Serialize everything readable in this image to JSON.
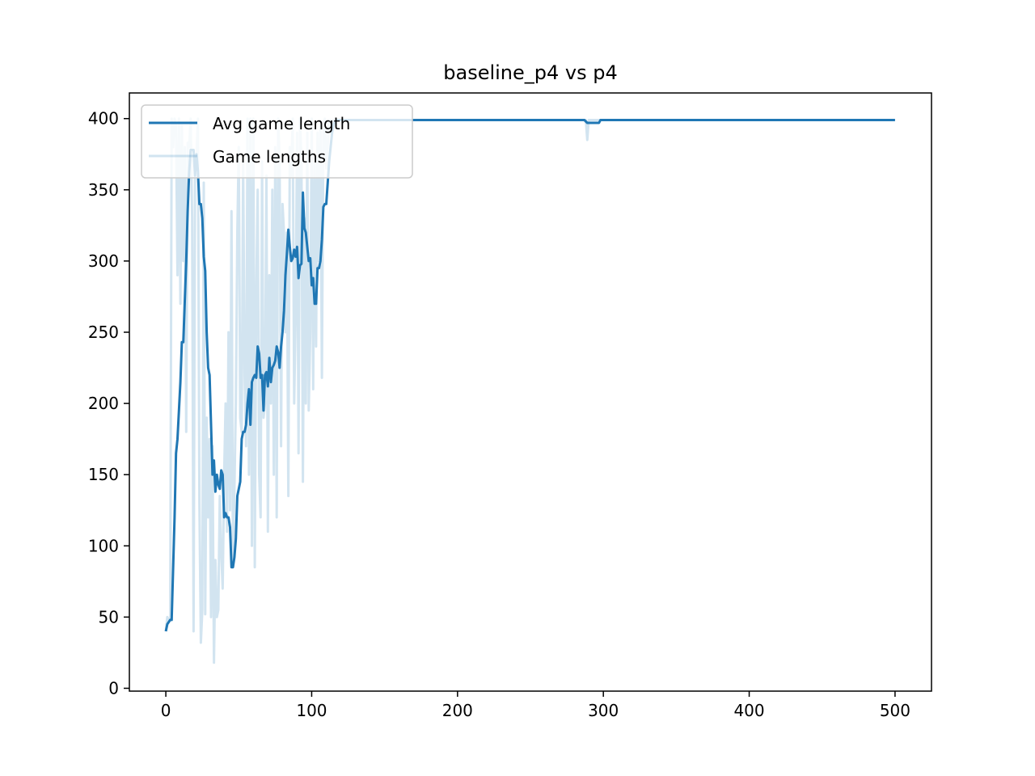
{
  "chart_data": {
    "type": "line",
    "title": "baseline_p4 vs p4",
    "xlabel": "",
    "ylabel": "",
    "xlim": [
      -25,
      525
    ],
    "ylim": [
      -2,
      418
    ],
    "x_ticks": [
      0,
      100,
      200,
      300,
      400,
      500
    ],
    "y_ticks": [
      0,
      50,
      100,
      150,
      200,
      250,
      300,
      350,
      400
    ],
    "grid": false,
    "legend_position": "top-left",
    "colors": {
      "avg": "#1f77b4",
      "raw": "#1f77b4"
    },
    "series": [
      {
        "name": "Avg game length",
        "style": "solid",
        "points": [
          [
            0,
            40
          ],
          [
            1,
            45
          ],
          [
            3,
            48
          ],
          [
            4,
            48
          ],
          [
            6,
            120
          ],
          [
            7,
            165
          ],
          [
            8,
            175
          ],
          [
            10,
            215
          ],
          [
            11,
            243
          ],
          [
            12,
            243
          ],
          [
            14,
            300
          ],
          [
            15,
            335
          ],
          [
            16,
            362
          ],
          [
            17,
            378
          ],
          [
            19,
            378
          ],
          [
            20,
            360
          ],
          [
            21,
            375
          ],
          [
            22,
            363
          ],
          [
            23,
            340
          ],
          [
            24,
            340
          ],
          [
            25,
            330
          ],
          [
            26,
            303
          ],
          [
            27,
            293
          ],
          [
            28,
            250
          ],
          [
            29,
            225
          ],
          [
            30,
            220
          ],
          [
            31,
            185
          ],
          [
            32,
            150
          ],
          [
            33,
            160
          ],
          [
            34,
            138
          ],
          [
            35,
            150
          ],
          [
            36,
            143
          ],
          [
            37,
            140
          ],
          [
            38,
            153
          ],
          [
            39,
            150
          ],
          [
            40,
            120
          ],
          [
            41,
            123
          ],
          [
            42,
            120
          ],
          [
            43,
            120
          ],
          [
            44,
            113
          ],
          [
            45,
            85
          ],
          [
            46,
            85
          ],
          [
            47,
            92
          ],
          [
            48,
            105
          ],
          [
            49,
            135
          ],
          [
            50,
            140
          ],
          [
            51,
            145
          ],
          [
            52,
            175
          ],
          [
            53,
            180
          ],
          [
            54,
            180
          ],
          [
            55,
            185
          ],
          [
            56,
            200
          ],
          [
            57,
            210
          ],
          [
            58,
            185
          ],
          [
            59,
            215
          ],
          [
            60,
            218
          ],
          [
            61,
            220
          ],
          [
            62,
            218
          ],
          [
            63,
            240
          ],
          [
            64,
            235
          ],
          [
            65,
            218
          ],
          [
            66,
            220
          ],
          [
            67,
            195
          ],
          [
            68,
            220
          ],
          [
            69,
            222
          ],
          [
            70,
            212
          ],
          [
            71,
            232
          ],
          [
            72,
            215
          ],
          [
            73,
            225
          ],
          [
            74,
            227
          ],
          [
            75,
            230
          ],
          [
            76,
            240
          ],
          [
            77,
            236
          ],
          [
            78,
            225
          ],
          [
            79,
            240
          ],
          [
            80,
            250
          ],
          [
            81,
            265
          ],
          [
            82,
            290
          ],
          [
            83,
            305
          ],
          [
            84,
            322
          ],
          [
            85,
            310
          ],
          [
            86,
            300
          ],
          [
            87,
            302
          ],
          [
            88,
            308
          ],
          [
            89,
            303
          ],
          [
            90,
            310
          ],
          [
            91,
            288
          ],
          [
            92,
            297
          ],
          [
            93,
            298
          ],
          [
            94,
            348
          ],
          [
            95,
            323
          ],
          [
            96,
            320
          ],
          [
            97,
            310
          ],
          [
            98,
            300
          ],
          [
            99,
            302
          ],
          [
            100,
            283
          ],
          [
            101,
            288
          ],
          [
            102,
            270
          ],
          [
            103,
            270
          ],
          [
            104,
            295
          ],
          [
            105,
            295
          ],
          [
            106,
            300
          ],
          [
            107,
            315
          ],
          [
            108,
            338
          ],
          [
            109,
            340
          ],
          [
            110,
            340
          ],
          [
            111,
            355
          ],
          [
            112,
            370
          ],
          [
            113,
            380
          ],
          [
            114,
            390
          ],
          [
            115,
            396
          ],
          [
            116,
            398
          ],
          [
            118,
            399
          ],
          [
            120,
            399
          ],
          [
            150,
            399
          ],
          [
            200,
            399
          ],
          [
            250,
            399
          ],
          [
            287,
            399
          ],
          [
            289,
            397
          ],
          [
            297,
            397
          ],
          [
            298,
            399
          ],
          [
            350,
            399
          ],
          [
            400,
            399
          ],
          [
            450,
            399
          ],
          [
            500,
            399
          ]
        ]
      },
      {
        "name": "Game lengths",
        "style": "light",
        "points": [
          [
            0,
            40
          ],
          [
            1,
            50
          ],
          [
            2,
            47
          ],
          [
            3,
            50
          ],
          [
            4,
            400
          ],
          [
            5,
            380
          ],
          [
            6,
            400
          ],
          [
            7,
            395
          ],
          [
            8,
            290
          ],
          [
            9,
            400
          ],
          [
            10,
            270
          ],
          [
            11,
            395
          ],
          [
            12,
            300
          ],
          [
            13,
            380
          ],
          [
            14,
            180
          ],
          [
            15,
            383
          ],
          [
            16,
            380
          ],
          [
            17,
            400
          ],
          [
            18,
            330
          ],
          [
            19,
            40
          ],
          [
            20,
            365
          ],
          [
            21,
            375
          ],
          [
            22,
            400
          ],
          [
            23,
            130
          ],
          [
            24,
            32
          ],
          [
            25,
            55
          ],
          [
            26,
            355
          ],
          [
            27,
            52
          ],
          [
            28,
            190
          ],
          [
            29,
            120
          ],
          [
            30,
            175
          ],
          [
            31,
            50
          ],
          [
            32,
            170
          ],
          [
            33,
            18
          ],
          [
            34,
            90
          ],
          [
            35,
            50
          ],
          [
            36,
            55
          ],
          [
            37,
            135
          ],
          [
            38,
            95
          ],
          [
            39,
            70
          ],
          [
            40,
            150
          ],
          [
            41,
            200
          ],
          [
            42,
            110
          ],
          [
            43,
            250
          ],
          [
            44,
            125
          ],
          [
            45,
            335
          ],
          [
            46,
            85
          ],
          [
            47,
            140
          ],
          [
            48,
            200
          ],
          [
            49,
            320
          ],
          [
            50,
            380
          ],
          [
            51,
            190
          ],
          [
            52,
            180
          ],
          [
            53,
            370
          ],
          [
            54,
            220
          ],
          [
            55,
            170
          ],
          [
            56,
            400
          ],
          [
            57,
            150
          ],
          [
            58,
            400
          ],
          [
            59,
            100
          ],
          [
            60,
            400
          ],
          [
            61,
            85
          ],
          [
            62,
            280
          ],
          [
            63,
            350
          ],
          [
            64,
            150
          ],
          [
            65,
            120
          ],
          [
            66,
            370
          ],
          [
            67,
            190
          ],
          [
            68,
            200
          ],
          [
            69,
            360
          ],
          [
            70,
            110
          ],
          [
            71,
            290
          ],
          [
            72,
            200
          ],
          [
            73,
            350
          ],
          [
            74,
            150
          ],
          [
            75,
            380
          ],
          [
            76,
            120
          ],
          [
            77,
            400
          ],
          [
            78,
            370
          ],
          [
            79,
            170
          ],
          [
            80,
            340
          ],
          [
            81,
            320
          ],
          [
            82,
            250
          ],
          [
            83,
            320
          ],
          [
            84,
            135
          ],
          [
            85,
            380
          ],
          [
            86,
            360
          ],
          [
            87,
            400
          ],
          [
            88,
            200
          ],
          [
            89,
            260
          ],
          [
            90,
            390
          ],
          [
            91,
            165
          ],
          [
            92,
            400
          ],
          [
            93,
            370
          ],
          [
            94,
            145
          ],
          [
            95,
            330
          ],
          [
            96,
            200
          ],
          [
            97,
            390
          ],
          [
            98,
            195
          ],
          [
            99,
            250
          ],
          [
            100,
            400
          ],
          [
            101,
            210
          ],
          [
            102,
            370
          ],
          [
            103,
            240
          ],
          [
            104,
            390
          ],
          [
            105,
            300
          ],
          [
            106,
            395
          ],
          [
            107,
            218
          ],
          [
            108,
            390
          ],
          [
            109,
            400
          ],
          [
            110,
            365
          ],
          [
            112,
            399
          ],
          [
            120,
            399
          ],
          [
            150,
            399
          ],
          [
            200,
            399
          ],
          [
            250,
            399
          ],
          [
            288,
            399
          ],
          [
            289,
            385
          ],
          [
            290,
            399
          ],
          [
            350,
            399
          ],
          [
            400,
            399
          ],
          [
            450,
            399
          ],
          [
            500,
            399
          ]
        ]
      }
    ]
  }
}
